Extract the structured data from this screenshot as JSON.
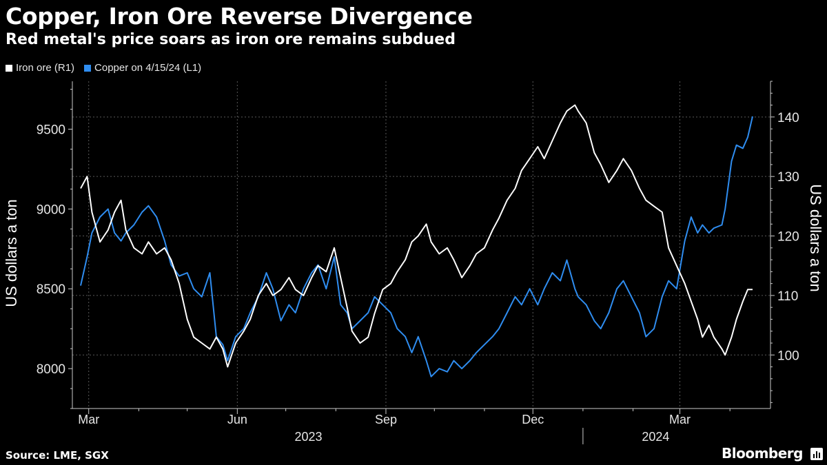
{
  "header": {
    "title": "Copper, Iron Ore Reverse Divergence",
    "subtitle": "Red metal's price soars as iron ore remains subdued"
  },
  "footer": {
    "source": "Source: LME, SGX",
    "brand": "Bloomberg"
  },
  "colors": {
    "background": "#000000",
    "iron_ore": "#ffffff",
    "copper": "#2f8df0",
    "grid": "#5a5a5a",
    "axis": "#cccccc"
  },
  "chart_data": {
    "type": "line",
    "title": "Copper, Iron Ore Reverse Divergence",
    "subtitle": "Red metal's price soars as iron ore remains subdued",
    "legend_position": "top-left",
    "x_range": [
      "2023-02-24",
      "2024-04-15"
    ],
    "x_ticks": [
      {
        "date": "2023-03-01",
        "label": "Mar"
      },
      {
        "date": "2023-06-01",
        "label": "Jun"
      },
      {
        "date": "2023-09-01",
        "label": "Sep"
      },
      {
        "date": "2023-12-01",
        "label": "Dec"
      },
      {
        "date": "2024-03-01",
        "label": "Mar"
      }
    ],
    "x_minor_ticks": [
      "2023-04-01",
      "2023-05-01",
      "2023-07-01",
      "2023-08-01",
      "2023-10-01",
      "2023-11-01",
      "2024-01-01",
      "2024-02-01",
      "2024-04-01"
    ],
    "year_labels": [
      {
        "date": "2023-07-15",
        "label": "2023"
      },
      {
        "date": "2024-02-15",
        "label": "2024"
      }
    ],
    "year_divider": "2024-01-01",
    "left_axis": {
      "label": "US dollars a ton",
      "range": [
        7750,
        9800
      ],
      "ticks": [
        8000,
        8500,
        9000,
        9500
      ]
    },
    "right_axis": {
      "label": "US dollars a ton",
      "range": [
        91,
        146
      ],
      "ticks": [
        100,
        110,
        120,
        130,
        140
      ]
    },
    "series": [
      {
        "name": "Iron ore (R1)",
        "axis": "right",
        "color": "#ffffff",
        "points": [
          [
            "2023-02-24",
            128
          ],
          [
            "2023-02-28",
            130
          ],
          [
            "2023-03-03",
            124
          ],
          [
            "2023-03-08",
            119
          ],
          [
            "2023-03-13",
            121
          ],
          [
            "2023-03-17",
            124
          ],
          [
            "2023-03-21",
            126
          ],
          [
            "2023-03-24",
            121
          ],
          [
            "2023-03-29",
            118
          ],
          [
            "2023-04-03",
            117
          ],
          [
            "2023-04-07",
            119
          ],
          [
            "2023-04-12",
            117
          ],
          [
            "2023-04-17",
            118
          ],
          [
            "2023-04-21",
            116
          ],
          [
            "2023-04-26",
            112
          ],
          [
            "2023-05-01",
            106
          ],
          [
            "2023-05-05",
            103
          ],
          [
            "2023-05-10",
            102
          ],
          [
            "2023-05-15",
            101
          ],
          [
            "2023-05-19",
            103
          ],
          [
            "2023-05-23",
            101
          ],
          [
            "2023-05-26",
            98
          ],
          [
            "2023-05-31",
            102
          ],
          [
            "2023-06-05",
            104
          ],
          [
            "2023-06-09",
            106
          ],
          [
            "2023-06-14",
            110
          ],
          [
            "2023-06-19",
            112
          ],
          [
            "2023-06-23",
            110
          ],
          [
            "2023-06-28",
            111
          ],
          [
            "2023-07-03",
            113
          ],
          [
            "2023-07-07",
            111
          ],
          [
            "2023-07-12",
            110
          ],
          [
            "2023-07-17",
            113
          ],
          [
            "2023-07-21",
            115
          ],
          [
            "2023-07-26",
            114
          ],
          [
            "2023-07-31",
            118
          ],
          [
            "2023-08-04",
            113
          ],
          [
            "2023-08-08",
            108
          ],
          [
            "2023-08-11",
            104
          ],
          [
            "2023-08-16",
            102
          ],
          [
            "2023-08-21",
            103
          ],
          [
            "2023-08-25",
            107
          ],
          [
            "2023-08-30",
            111
          ],
          [
            "2023-09-04",
            112
          ],
          [
            "2023-09-08",
            114
          ],
          [
            "2023-09-13",
            116
          ],
          [
            "2023-09-17",
            119
          ],
          [
            "2023-09-21",
            120
          ],
          [
            "2023-09-26",
            122
          ],
          [
            "2023-09-29",
            119
          ],
          [
            "2023-10-04",
            117
          ],
          [
            "2023-10-09",
            118
          ],
          [
            "2023-10-13",
            116
          ],
          [
            "2023-10-18",
            113
          ],
          [
            "2023-10-23",
            115
          ],
          [
            "2023-10-27",
            117
          ],
          [
            "2023-11-01",
            118
          ],
          [
            "2023-11-06",
            121
          ],
          [
            "2023-11-10",
            123
          ],
          [
            "2023-11-15",
            126
          ],
          [
            "2023-11-20",
            128
          ],
          [
            "2023-11-24",
            131
          ],
          [
            "2023-11-29",
            133
          ],
          [
            "2023-12-04",
            135
          ],
          [
            "2023-12-08",
            133
          ],
          [
            "2023-12-13",
            136
          ],
          [
            "2023-12-18",
            139
          ],
          [
            "2023-12-22",
            141
          ],
          [
            "2023-12-27",
            142
          ],
          [
            "2023-12-29",
            141
          ],
          [
            "2024-01-03",
            139
          ],
          [
            "2024-01-08",
            134
          ],
          [
            "2024-01-12",
            132
          ],
          [
            "2024-01-17",
            129
          ],
          [
            "2024-01-22",
            131
          ],
          [
            "2024-01-26",
            133
          ],
          [
            "2024-01-31",
            131
          ],
          [
            "2024-02-05",
            128
          ],
          [
            "2024-02-09",
            126
          ],
          [
            "2024-02-14",
            125
          ],
          [
            "2024-02-19",
            124
          ],
          [
            "2024-02-23",
            118
          ],
          [
            "2024-02-28",
            115
          ],
          [
            "2024-03-04",
            112
          ],
          [
            "2024-03-08",
            109
          ],
          [
            "2024-03-12",
            106
          ],
          [
            "2024-03-15",
            103
          ],
          [
            "2024-03-19",
            105
          ],
          [
            "2024-03-22",
            103
          ],
          [
            "2024-03-27",
            101
          ],
          [
            "2024-03-29",
            100
          ],
          [
            "2024-04-02",
            103
          ],
          [
            "2024-04-05",
            106
          ],
          [
            "2024-04-09",
            109
          ],
          [
            "2024-04-12",
            111
          ],
          [
            "2024-04-15",
            111
          ]
        ]
      },
      {
        "name": "Copper on 4/15/24 (L1)",
        "axis": "left",
        "color": "#2f8df0",
        "points": [
          [
            "2023-02-24",
            8520
          ],
          [
            "2023-02-28",
            8700
          ],
          [
            "2023-03-03",
            8850
          ],
          [
            "2023-03-08",
            8950
          ],
          [
            "2023-03-13",
            9000
          ],
          [
            "2023-03-17",
            8850
          ],
          [
            "2023-03-21",
            8800
          ],
          [
            "2023-03-24",
            8850
          ],
          [
            "2023-03-29",
            8900
          ],
          [
            "2023-04-03",
            8980
          ],
          [
            "2023-04-07",
            9020
          ],
          [
            "2023-04-12",
            8950
          ],
          [
            "2023-04-17",
            8800
          ],
          [
            "2023-04-21",
            8650
          ],
          [
            "2023-04-26",
            8580
          ],
          [
            "2023-05-01",
            8600
          ],
          [
            "2023-05-05",
            8500
          ],
          [
            "2023-05-10",
            8450
          ],
          [
            "2023-05-15",
            8600
          ],
          [
            "2023-05-19",
            8200
          ],
          [
            "2023-05-23",
            8150
          ],
          [
            "2023-05-26",
            8050
          ],
          [
            "2023-05-31",
            8200
          ],
          [
            "2023-06-05",
            8250
          ],
          [
            "2023-06-09",
            8350
          ],
          [
            "2023-06-14",
            8450
          ],
          [
            "2023-06-19",
            8600
          ],
          [
            "2023-06-23",
            8500
          ],
          [
            "2023-06-28",
            8300
          ],
          [
            "2023-07-03",
            8400
          ],
          [
            "2023-07-07",
            8350
          ],
          [
            "2023-07-12",
            8500
          ],
          [
            "2023-07-17",
            8600
          ],
          [
            "2023-07-21",
            8650
          ],
          [
            "2023-07-26",
            8500
          ],
          [
            "2023-07-31",
            8700
          ],
          [
            "2023-08-04",
            8400
          ],
          [
            "2023-08-08",
            8350
          ],
          [
            "2023-08-11",
            8250
          ],
          [
            "2023-08-16",
            8300
          ],
          [
            "2023-08-21",
            8350
          ],
          [
            "2023-08-25",
            8450
          ],
          [
            "2023-08-30",
            8400
          ],
          [
            "2023-09-04",
            8350
          ],
          [
            "2023-09-08",
            8250
          ],
          [
            "2023-09-13",
            8200
          ],
          [
            "2023-09-17",
            8100
          ],
          [
            "2023-09-21",
            8200
          ],
          [
            "2023-09-26",
            8050
          ],
          [
            "2023-09-29",
            7950
          ],
          [
            "2023-10-04",
            8000
          ],
          [
            "2023-10-09",
            7980
          ],
          [
            "2023-10-13",
            8050
          ],
          [
            "2023-10-18",
            8000
          ],
          [
            "2023-10-23",
            8050
          ],
          [
            "2023-10-27",
            8100
          ],
          [
            "2023-11-01",
            8150
          ],
          [
            "2023-11-06",
            8200
          ],
          [
            "2023-11-10",
            8250
          ],
          [
            "2023-11-15",
            8350
          ],
          [
            "2023-11-20",
            8450
          ],
          [
            "2023-11-24",
            8400
          ],
          [
            "2023-11-29",
            8500
          ],
          [
            "2023-12-04",
            8400
          ],
          [
            "2023-12-08",
            8500
          ],
          [
            "2023-12-13",
            8600
          ],
          [
            "2023-12-18",
            8550
          ],
          [
            "2023-12-22",
            8680
          ],
          [
            "2023-12-27",
            8500
          ],
          [
            "2023-12-29",
            8450
          ],
          [
            "2024-01-03",
            8400
          ],
          [
            "2024-01-08",
            8300
          ],
          [
            "2024-01-12",
            8250
          ],
          [
            "2024-01-17",
            8350
          ],
          [
            "2024-01-22",
            8500
          ],
          [
            "2024-01-26",
            8550
          ],
          [
            "2024-01-31",
            8450
          ],
          [
            "2024-02-05",
            8350
          ],
          [
            "2024-02-09",
            8200
          ],
          [
            "2024-02-14",
            8250
          ],
          [
            "2024-02-19",
            8450
          ],
          [
            "2024-02-23",
            8550
          ],
          [
            "2024-02-28",
            8500
          ],
          [
            "2024-03-04",
            8800
          ],
          [
            "2024-03-08",
            8950
          ],
          [
            "2024-03-12",
            8850
          ],
          [
            "2024-03-15",
            8900
          ],
          [
            "2024-03-19",
            8850
          ],
          [
            "2024-03-22",
            8880
          ],
          [
            "2024-03-27",
            8900
          ],
          [
            "2024-03-29",
            9000
          ],
          [
            "2024-04-02",
            9300
          ],
          [
            "2024-04-05",
            9400
          ],
          [
            "2024-04-09",
            9380
          ],
          [
            "2024-04-12",
            9450
          ],
          [
            "2024-04-15",
            9580
          ]
        ]
      }
    ]
  }
}
